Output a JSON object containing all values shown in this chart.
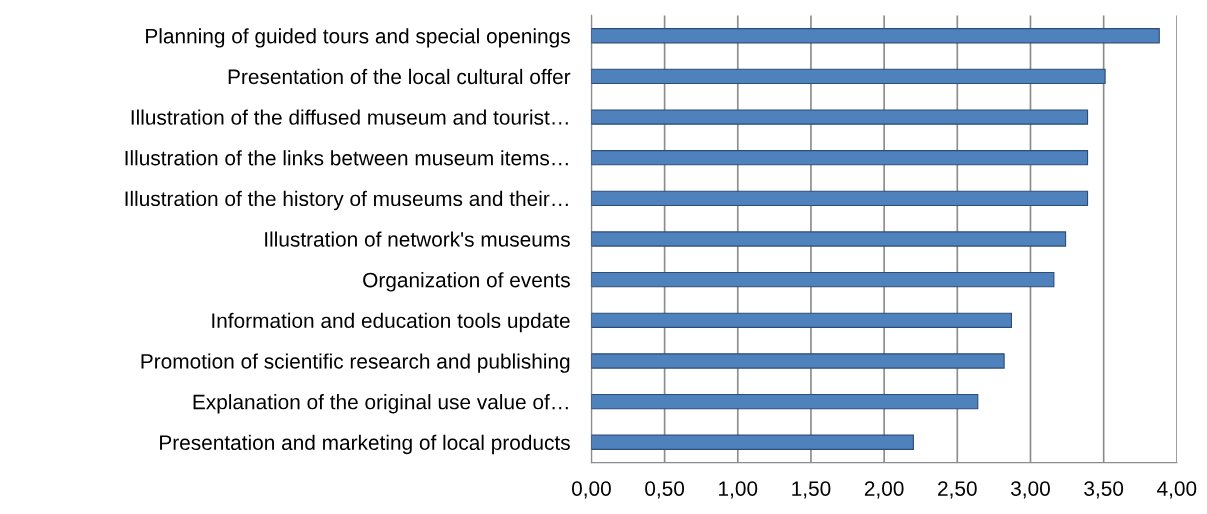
{
  "chart_data": {
    "type": "bar",
    "orientation": "horizontal",
    "categories": [
      "Planning of guided tours and special openings",
      "Presentation of the local cultural offer",
      "Illustration of the diffused museum and tourist…",
      "Illustration of the links between museum items…",
      "Illustration of the history of museums and their…",
      "Illustration of network's museums",
      "Organization of events",
      "Information and education tools update",
      "Promotion of scientific research and publishing",
      "Explanation of the original use value of…",
      "Presentation and marketing of local products"
    ],
    "values": [
      3.88,
      3.51,
      3.39,
      3.39,
      3.39,
      3.24,
      3.16,
      2.87,
      2.82,
      2.64,
      2.2
    ],
    "color": "#4f81bd",
    "xlim": [
      0,
      4
    ],
    "xticks": [
      {
        "value": 0,
        "label": "0,00"
      },
      {
        "value": 0.5,
        "label": "0,50"
      },
      {
        "value": 1,
        "label": "1,00"
      },
      {
        "value": 1.5,
        "label": "1,50"
      },
      {
        "value": 2,
        "label": "2,00"
      },
      {
        "value": 2.5,
        "label": "2,50"
      },
      {
        "value": 3,
        "label": "3,00"
      },
      {
        "value": 3.5,
        "label": "3,50"
      },
      {
        "value": 4,
        "label": "4,00"
      }
    ],
    "grid": "x"
  }
}
